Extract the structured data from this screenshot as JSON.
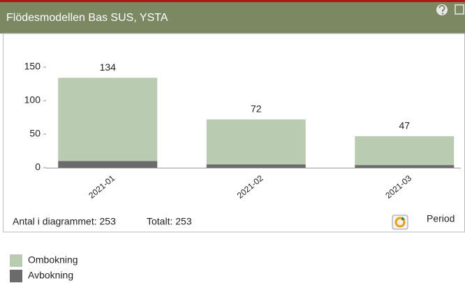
{
  "header": {
    "title": "Flödesmodellen Bas SUS, YSTA"
  },
  "footer": {
    "count": "Antal i diagrammet: 253",
    "total": "Totalt: 253",
    "period": "Period"
  },
  "chart_data": {
    "type": "stacked_bar",
    "categories": [
      "2021-01",
      "2021-02",
      "2021-03"
    ],
    "series": [
      {
        "name": "Ombokning",
        "color": "#b9cbb1",
        "values": [
          124,
          67,
          43
        ]
      },
      {
        "name": "Avbokning",
        "color": "#6b6b6b",
        "values": [
          10,
          5,
          4
        ]
      }
    ],
    "totals": [
      134,
      72,
      47
    ],
    "ylim": [
      0,
      150
    ],
    "yticks": [
      0,
      50,
      100,
      150
    ]
  }
}
